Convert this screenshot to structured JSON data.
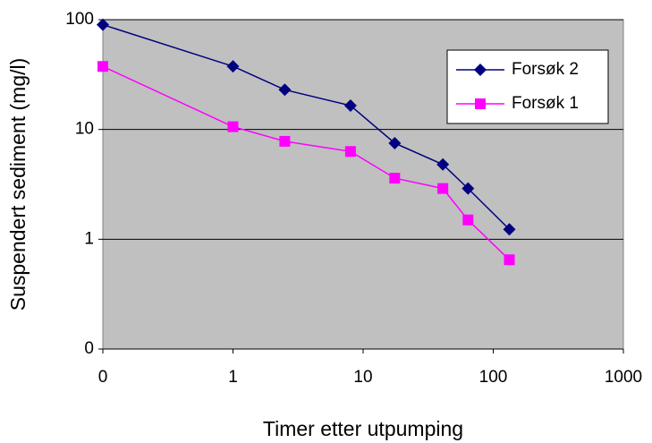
{
  "chart_data": {
    "type": "line",
    "x_label": "Timer etter utpumping",
    "y_label": "Suspendert sediment (mg/l)",
    "x": [
      0.1,
      1,
      2.5,
      8,
      17.5,
      41,
      64,
      133
    ],
    "series": [
      {
        "name": "Forsøk 2",
        "color": "#000080",
        "marker": "diamond",
        "values": [
          90,
          37.6,
          23,
          16.5,
          7.5,
          4.8,
          2.9,
          1.23
        ]
      },
      {
        "name": "Forsøk 1",
        "color": "#ff00ff",
        "marker": "square",
        "values": [
          37.5,
          10.6,
          7.8,
          6.3,
          3.6,
          2.9,
          1.5,
          0.65
        ]
      }
    ],
    "x_scale": "log",
    "y_scale": "log",
    "xlim": [
      0.1,
      1000
    ],
    "ylim": [
      0.1,
      100
    ],
    "xticks": [
      {
        "value": 0.1,
        "label": "0"
      },
      1,
      10,
      100,
      1000
    ],
    "yticks": [
      {
        "value": 0.1,
        "label": "0"
      },
      1,
      10,
      100
    ],
    "grid": true,
    "legend": "upper-right",
    "background": "#c0c0c0"
  }
}
